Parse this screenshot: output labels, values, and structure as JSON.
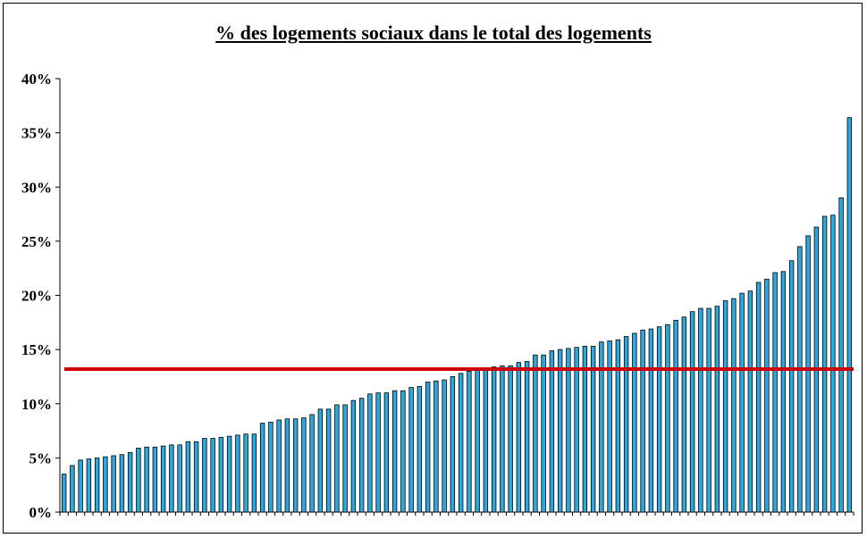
{
  "chart_data": {
    "type": "bar",
    "title": "% des logements sociaux dans le total des logements",
    "xlabel": "",
    "ylabel": "",
    "ylim": [
      0,
      40
    ],
    "yticks": [
      0,
      5,
      10,
      15,
      20,
      25,
      30,
      35,
      40
    ],
    "ytick_labels": [
      "0%",
      "5%",
      "10%",
      "15%",
      "20%",
      "25%",
      "30%",
      "35%",
      "40%"
    ],
    "values": [
      3.5,
      4.3,
      4.8,
      4.9,
      5.0,
      5.1,
      5.2,
      5.3,
      5.5,
      5.9,
      6.0,
      6.0,
      6.1,
      6.2,
      6.2,
      6.5,
      6.5,
      6.8,
      6.8,
      6.9,
      7.0,
      7.1,
      7.2,
      7.2,
      8.2,
      8.3,
      8.5,
      8.6,
      8.6,
      8.7,
      9.0,
      9.5,
      9.5,
      9.9,
      9.9,
      10.3,
      10.5,
      10.9,
      11.0,
      11.0,
      11.2,
      11.2,
      11.5,
      11.6,
      12.0,
      12.1,
      12.2,
      12.5,
      12.8,
      13.0,
      13.2,
      13.3,
      13.4,
      13.5,
      13.5,
      13.8,
      13.9,
      14.5,
      14.5,
      14.9,
      15.0,
      15.1,
      15.2,
      15.3,
      15.3,
      15.7,
      15.8,
      15.9,
      16.2,
      16.5,
      16.8,
      16.9,
      17.1,
      17.3,
      17.7,
      18.0,
      18.5,
      18.8,
      18.8,
      19.0,
      19.5,
      19.7,
      20.2,
      20.4,
      21.2,
      21.5,
      22.1,
      22.2,
      23.2,
      24.5,
      25.5,
      26.3,
      27.3,
      27.4,
      29.0,
      36.4
    ],
    "reference_line": 13.2,
    "colors": {
      "bar_fill": "#2ea8dc",
      "bar_stroke": "#000000",
      "reference_line": "#cc0000",
      "axis": "#000000"
    },
    "grid": false,
    "legend": "none"
  }
}
